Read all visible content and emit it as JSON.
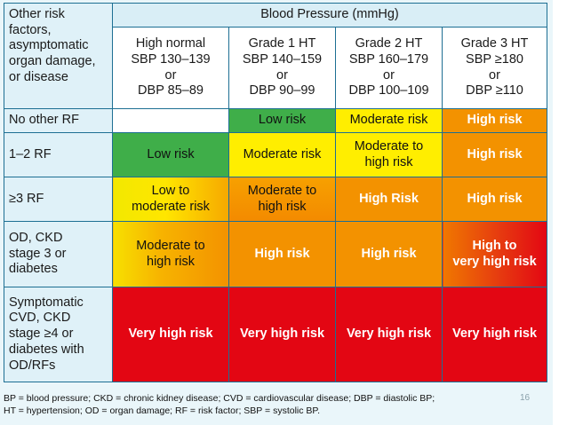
{
  "header": {
    "corner": [
      "Other risk",
      "factors,",
      "asymptomatic",
      "organ damage,",
      "or disease"
    ],
    "bp_title": "Blood Pressure (mmHg)",
    "grades": [
      [
        "High normal",
        "SBP 130–139",
        "or",
        "DBP 85–89"
      ],
      [
        "Grade 1 HT",
        "SBP 140–159",
        "or",
        "DBP 90–99"
      ],
      [
        "Grade 2 HT",
        "SBP 160–179",
        "or",
        "DBP 100–109"
      ],
      [
        "Grade 3 HT",
        "SBP ≥180",
        "or",
        "DBP ≥110"
      ]
    ]
  },
  "rows": [
    {
      "factor": [
        "No other RF"
      ],
      "cells": [
        [
          ""
        ],
        [
          "Low risk"
        ],
        [
          "Moderate risk"
        ],
        [
          "High risk"
        ]
      ]
    },
    {
      "factor": [
        "1–2 RF"
      ],
      "cells": [
        [
          "Low risk"
        ],
        [
          "Moderate risk"
        ],
        [
          "Moderate to",
          "high risk"
        ],
        [
          "High risk"
        ]
      ]
    },
    {
      "factor": [
        "≥3 RF"
      ],
      "cells": [
        [
          "Low to",
          "moderate risk"
        ],
        [
          "Moderate to",
          "high risk"
        ],
        [
          "High Risk"
        ],
        [
          "High risk"
        ]
      ]
    },
    {
      "factor": [
        "OD, CKD",
        "stage 3 or",
        "diabetes"
      ],
      "cells": [
        [
          "Moderate to",
          "high risk"
        ],
        [
          "High risk"
        ],
        [
          "High risk"
        ],
        [
          "High to",
          "very high risk"
        ]
      ]
    },
    {
      "factor": [
        "Symptomatic",
        "CVD, CKD",
        "stage ≥4 or",
        "diabetes with",
        "OD/RFs"
      ],
      "cells": [
        [
          "Very high risk"
        ],
        [
          "Very high risk"
        ],
        [
          "Very high risk"
        ],
        [
          "Very high risk"
        ]
      ]
    }
  ],
  "footnote": {
    "line1": "BP = blood pressure; CKD = chronic kidney disease; CVD = cardiovascular disease; DBP = diastolic BP;",
    "line2": "HT = hypertension; OD = organ damage; RF = risk factor; SBP = systolic BP."
  },
  "page_number": "16",
  "colors": {
    "low": "#3fae49",
    "moderate": "#ffee00",
    "high": "#f39200",
    "very_high": "#e30613",
    "border": "#1d6f93"
  }
}
